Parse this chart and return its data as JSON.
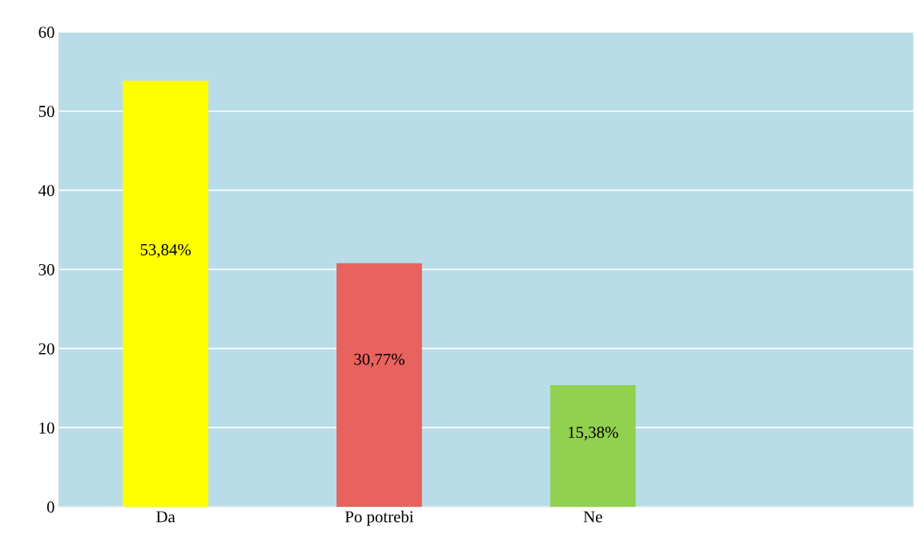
{
  "chart_data": {
    "type": "bar",
    "categories": [
      "Da",
      "Po potrebi",
      "Ne",
      null
    ],
    "values": [
      53.84,
      30.77,
      15.38,
      null
    ],
    "colors": [
      "#ffff00",
      "#e8625e",
      "#92d050",
      "#92d050"
    ],
    "value_labels": [
      "53,84%",
      "30,77%",
      "15,38%",
      null
    ],
    "ylim": [
      0,
      60
    ],
    "yticks": [
      0,
      10,
      20,
      30,
      40,
      50,
      60
    ],
    "grid": "y"
  }
}
